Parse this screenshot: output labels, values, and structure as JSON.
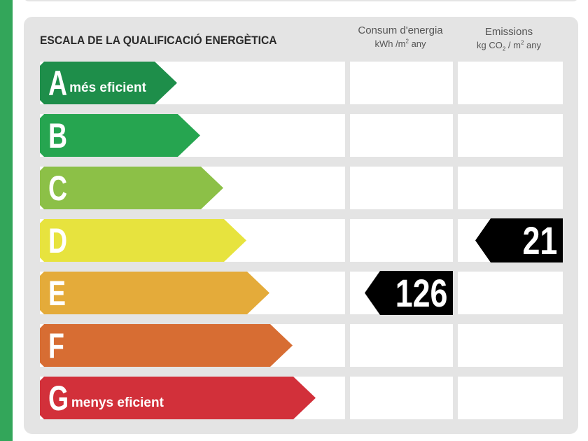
{
  "title": "ESCALA DE LA QUALIFICACIÓ ENERGÈTICA",
  "columns": {
    "consumption": {
      "label": "Consum d'energia",
      "unit_pre": "kWh /m",
      "unit_sup": "2",
      "unit_post": " any"
    },
    "emissions": {
      "label": "Emissions",
      "unit_pre": "kg CO",
      "unit_sub": "2",
      "unit_mid": " / m",
      "unit_sup": "2",
      "unit_post": " any"
    }
  },
  "ratings": [
    {
      "letter": "A",
      "sublabel": "més eficient",
      "color": "#1e8e4a"
    },
    {
      "letter": "B",
      "sublabel": "",
      "color": "#26a550"
    },
    {
      "letter": "C",
      "sublabel": "",
      "color": "#8cc047"
    },
    {
      "letter": "D",
      "sublabel": "",
      "color": "#e7e33e"
    },
    {
      "letter": "E",
      "sublabel": "",
      "color": "#e4ab3a"
    },
    {
      "letter": "F",
      "sublabel": "",
      "color": "#d76d33"
    },
    {
      "letter": "G",
      "sublabel": "menys eficient",
      "color": "#d2303a"
    }
  ],
  "consumption_value": {
    "value": "126",
    "rating": "E"
  },
  "emissions_value": {
    "value": "21",
    "rating": "D"
  }
}
